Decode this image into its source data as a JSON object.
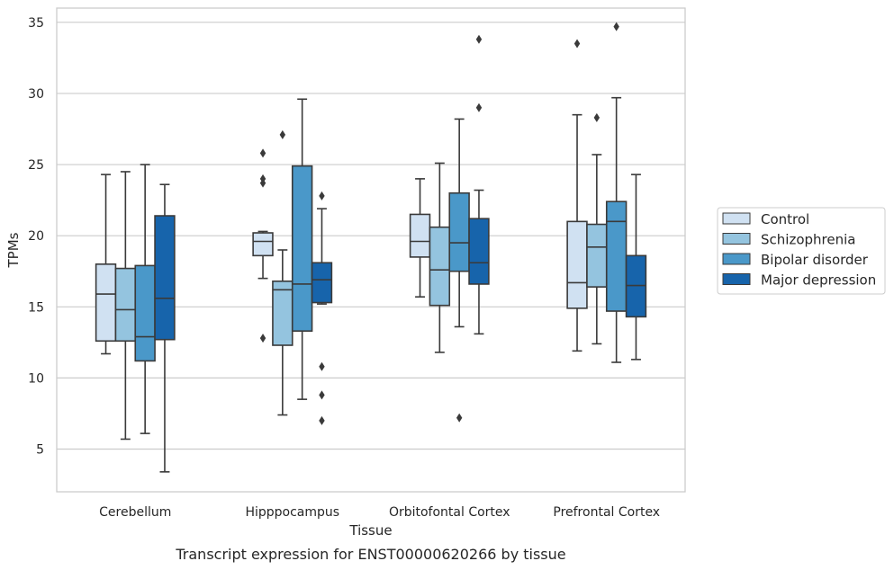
{
  "chart_data": {
    "type": "box",
    "title": "",
    "caption": "Transcript expression for ENST00000620266 by tissue",
    "xlabel": "Tissue",
    "ylabel": "TPMs",
    "ylim": [
      2,
      36
    ],
    "yticks": [
      5,
      10,
      15,
      20,
      25,
      30,
      35
    ],
    "grid": true,
    "legend_position": "right",
    "categories": [
      "Cerebellum",
      "Hipppocampus",
      "Orbitofontal Cortex",
      "Prefrontal Cortex"
    ],
    "series": [
      {
        "name": "Control",
        "color": "#d0e1f2",
        "boxes": [
          {
            "whislo": 11.7,
            "q1": 12.6,
            "med": 15.9,
            "q3": 18.0,
            "whishi": 24.3,
            "fliers": []
          },
          {
            "whislo": 17.0,
            "q1": 18.6,
            "med": 19.6,
            "q3": 20.2,
            "whishi": 20.3,
            "fliers": [
              25.8,
              24.0,
              23.7,
              12.8
            ]
          },
          {
            "whislo": 15.7,
            "q1": 18.5,
            "med": 19.6,
            "q3": 21.5,
            "whishi": 24.0,
            "fliers": []
          },
          {
            "whislo": 11.9,
            "q1": 14.9,
            "med": 16.7,
            "q3": 21.0,
            "whishi": 28.5,
            "fliers": [
              33.5
            ]
          }
        ]
      },
      {
        "name": "Schizophrenia",
        "color": "#94c4df",
        "boxes": [
          {
            "whislo": 5.7,
            "q1": 12.6,
            "med": 14.8,
            "q3": 17.7,
            "whishi": 24.5,
            "fliers": []
          },
          {
            "whislo": 7.4,
            "q1": 12.3,
            "med": 16.2,
            "q3": 16.8,
            "whishi": 19.0,
            "fliers": [
              27.1
            ]
          },
          {
            "whislo": 11.8,
            "q1": 15.1,
            "med": 17.6,
            "q3": 20.6,
            "whishi": 25.1,
            "fliers": []
          },
          {
            "whislo": 12.4,
            "q1": 16.4,
            "med": 19.2,
            "q3": 20.8,
            "whishi": 25.7,
            "fliers": [
              28.3
            ]
          }
        ]
      },
      {
        "name": "Bipolar disorder",
        "color": "#4a98c9",
        "boxes": [
          {
            "whislo": 6.1,
            "q1": 11.2,
            "med": 12.9,
            "q3": 17.9,
            "whishi": 25.0,
            "fliers": []
          },
          {
            "whislo": 8.5,
            "q1": 13.3,
            "med": 16.6,
            "q3": 24.9,
            "whishi": 29.6,
            "fliers": []
          },
          {
            "whislo": 13.6,
            "q1": 17.5,
            "med": 19.5,
            "q3": 23.0,
            "whishi": 28.2,
            "fliers": [
              7.2
            ]
          },
          {
            "whislo": 11.1,
            "q1": 14.7,
            "med": 21.0,
            "q3": 22.4,
            "whishi": 29.7,
            "fliers": [
              34.7
            ]
          }
        ]
      },
      {
        "name": "Major depression",
        "color": "#1764ab",
        "boxes": [
          {
            "whislo": 3.4,
            "q1": 12.7,
            "med": 15.6,
            "q3": 21.4,
            "whishi": 23.6,
            "fliers": []
          },
          {
            "whislo": 15.2,
            "q1": 15.3,
            "med": 16.9,
            "q3": 18.1,
            "whishi": 21.9,
            "fliers": [
              22.8,
              10.8,
              8.8,
              7.0
            ]
          },
          {
            "whislo": 13.1,
            "q1": 16.6,
            "med": 18.1,
            "q3": 21.2,
            "whishi": 23.2,
            "fliers": [
              33.8,
              29.0
            ]
          },
          {
            "whislo": 11.3,
            "q1": 14.3,
            "med": 16.5,
            "q3": 18.6,
            "whishi": 24.3,
            "fliers": []
          }
        ]
      }
    ]
  }
}
